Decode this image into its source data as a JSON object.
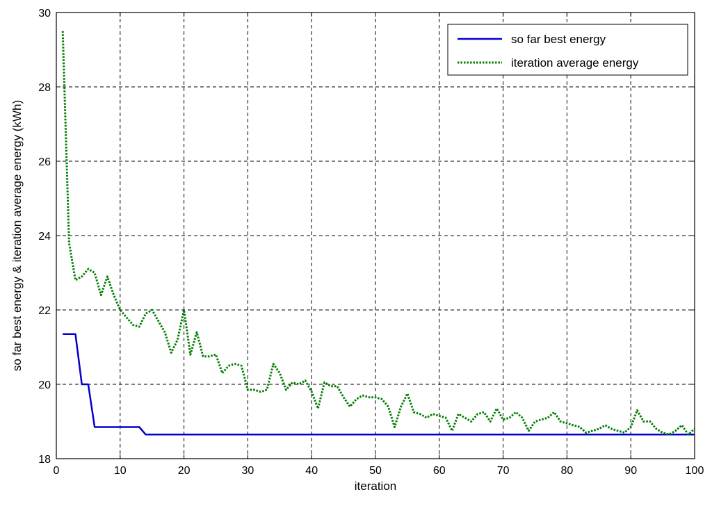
{
  "chart_data": {
    "type": "line",
    "xlabel": "iteration",
    "ylabel": "so far best energy & iteration average energy (kWh)",
    "xlim": [
      0,
      100
    ],
    "ylim": [
      18,
      30
    ],
    "xticks": [
      0,
      10,
      20,
      30,
      40,
      50,
      60,
      70,
      80,
      90,
      100
    ],
    "yticks": [
      18,
      20,
      22,
      24,
      26,
      28,
      30
    ],
    "grid": true,
    "legend_position": "top-right",
    "series": [
      {
        "name": "so far best energy",
        "color": "#0000cc",
        "style": "solid",
        "x": [
          1,
          2,
          3,
          4,
          5,
          6,
          7,
          8,
          9,
          10,
          11,
          12,
          13,
          14,
          15,
          20,
          30,
          40,
          50,
          60,
          70,
          80,
          90,
          100
        ],
        "y": [
          21.35,
          21.35,
          21.35,
          20.0,
          20.0,
          18.85,
          18.85,
          18.85,
          18.85,
          18.85,
          18.85,
          18.85,
          18.85,
          18.65,
          18.65,
          18.65,
          18.65,
          18.65,
          18.65,
          18.65,
          18.65,
          18.65,
          18.65,
          18.65
        ]
      },
      {
        "name": "iteration average energy",
        "color": "#007f00",
        "style": "dotted",
        "x": [
          1,
          2,
          3,
          4,
          5,
          6,
          7,
          8,
          9,
          10,
          11,
          12,
          13,
          14,
          15,
          16,
          17,
          18,
          19,
          20,
          21,
          22,
          23,
          24,
          25,
          26,
          27,
          28,
          29,
          30,
          31,
          32,
          33,
          34,
          35,
          36,
          37,
          38,
          39,
          40,
          41,
          42,
          43,
          44,
          45,
          46,
          47,
          48,
          49,
          50,
          51,
          52,
          53,
          54,
          55,
          56,
          57,
          58,
          59,
          60,
          61,
          62,
          63,
          64,
          65,
          66,
          67,
          68,
          69,
          70,
          71,
          72,
          73,
          74,
          75,
          76,
          77,
          78,
          79,
          80,
          81,
          82,
          83,
          84,
          85,
          86,
          87,
          88,
          89,
          90,
          91,
          92,
          93,
          94,
          95,
          96,
          97,
          98,
          99,
          100
        ],
        "y": [
          29.5,
          23.8,
          22.8,
          22.9,
          23.1,
          23.0,
          22.4,
          22.9,
          22.4,
          22.0,
          21.8,
          21.6,
          21.55,
          21.9,
          22.0,
          21.7,
          21.4,
          20.85,
          21.2,
          22.0,
          20.8,
          21.4,
          20.75,
          20.75,
          20.8,
          20.3,
          20.5,
          20.55,
          20.5,
          19.85,
          19.85,
          19.8,
          19.85,
          20.55,
          20.3,
          19.85,
          20.05,
          20.0,
          20.1,
          19.8,
          19.35,
          20.05,
          19.95,
          19.95,
          19.65,
          19.4,
          19.6,
          19.7,
          19.65,
          19.65,
          19.6,
          19.4,
          18.85,
          19.4,
          19.75,
          19.25,
          19.2,
          19.1,
          19.2,
          19.15,
          19.1,
          18.75,
          19.2,
          19.1,
          19.0,
          19.2,
          19.25,
          19.0,
          19.35,
          19.05,
          19.1,
          19.25,
          19.1,
          18.75,
          19.0,
          19.05,
          19.1,
          19.25,
          19.0,
          18.95,
          18.9,
          18.85,
          18.7,
          18.75,
          18.8,
          18.9,
          18.8,
          18.75,
          18.7,
          18.85,
          19.3,
          19.0,
          19.0,
          18.8,
          18.7,
          18.65,
          18.75,
          18.9,
          18.65,
          18.8
        ]
      }
    ]
  }
}
